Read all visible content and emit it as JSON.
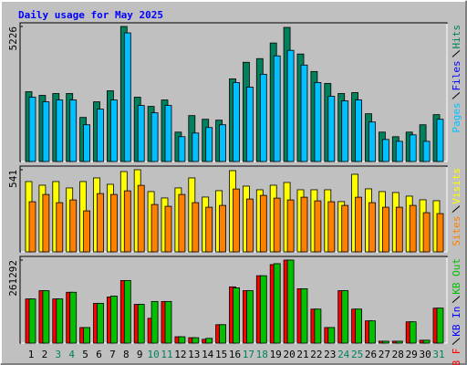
{
  "title": "Daily usage for May 2025",
  "chart_data": [
    {
      "type": "bar",
      "ylim": [
        0,
        5226
      ],
      "yticks": [
        5226
      ],
      "series": [
        {
          "name": "Hits",
          "color": "#00805c",
          "values": [
            2702,
            2560,
            2631,
            2631,
            1706,
            2311,
            2737,
            5226,
            2489,
            2133,
            2382,
            1138,
            1777,
            1635,
            1600,
            3200,
            3840,
            3982,
            4586,
            5190,
            4160,
            3484,
            3022,
            2631,
            2666,
            1849,
            1138,
            960,
            1138,
            1422,
            1813
          ]
        },
        {
          "name": "Files",
          "color": "#0000ff",
          "values": [
            null,
            null,
            null,
            null,
            null,
            null,
            null,
            null,
            null,
            null,
            null,
            null,
            null,
            null,
            null,
            null,
            null,
            null,
            null,
            null,
            null,
            null,
            null,
            null,
            null,
            null,
            null,
            null,
            null,
            null,
            null
          ]
        },
        {
          "name": "Pages",
          "color": "#00c0ff",
          "values": [
            2489,
            2311,
            2382,
            2382,
            1422,
            2027,
            2382,
            4977,
            2169,
            1884,
            2169,
            960,
            1102,
            1315,
            1422,
            3057,
            2880,
            3377,
            4088,
            4302,
            3733,
            3057,
            2524,
            2346,
            2382,
            1529,
            853,
            782,
            1031,
            782,
            1635
          ]
        }
      ]
    },
    {
      "type": "bar",
      "ylim": [
        0,
        541
      ],
      "yticks": [
        541
      ],
      "series": [
        {
          "name": "Visits",
          "color": "#ffff00",
          "values": [
            463,
            439,
            463,
            421,
            463,
            487,
            445,
            529,
            541,
            397,
            355,
            421,
            487,
            361,
            403,
            535,
            433,
            409,
            439,
            457,
            409,
            409,
            409,
            331,
            511,
            415,
            397,
            391,
            367,
            343,
            337
          ]
        },
        {
          "name": "Sites",
          "color": "#ff8000",
          "values": [
            330,
            378,
            324,
            342,
            270,
            384,
            378,
            402,
            438,
            312,
            300,
            378,
            324,
            294,
            306,
            414,
            348,
            372,
            354,
            342,
            360,
            336,
            330,
            306,
            360,
            324,
            294,
            294,
            306,
            258,
            252
          ]
        }
      ]
    },
    {
      "type": "bar",
      "ylim": [
        0,
        261292
      ],
      "yticks": [
        261292
      ],
      "legend_order": "reverse",
      "categories": [
        "1",
        "2",
        "3",
        "4",
        "5",
        "6",
        "7",
        "8",
        "9",
        "10",
        "11",
        "12",
        "13",
        "14",
        "15",
        "16",
        "17",
        "18",
        "19",
        "20",
        "21",
        "22",
        "23",
        "24",
        "25",
        "26",
        "27",
        "28",
        "29",
        "30",
        "31"
      ],
      "category_colors": [
        "#000000",
        "#000000",
        "#00805c",
        "#00805c",
        "#000000",
        "#000000",
        "#000000",
        "#000000",
        "#000000",
        "#00805c",
        "#00805c",
        "#000000",
        "#000000",
        "#000000",
        "#000000",
        "#000000",
        "#00805c",
        "#00805c",
        "#000000",
        "#000000",
        "#000000",
        "#000000",
        "#000000",
        "#00805c",
        "#00805c",
        "#000000",
        "#000000",
        "#000000",
        "#000000",
        "#000000",
        "#00805c"
      ],
      "series": [
        {
          "name": "KB F",
          "color": "#ff0000",
          "values": [
            139000,
            165000,
            139000,
            160000,
            49000,
            125000,
            145000,
            197000,
            122000,
            78000,
            131000,
            20000,
            17000,
            12000,
            58000,
            177000,
            165000,
            212000,
            247000,
            261292,
            171000,
            107000,
            49000,
            165000,
            107000,
            70000,
            6000,
            6000,
            67000,
            9000,
            110000
          ]
        },
        {
          "name": "KB In",
          "color": "#0000ff",
          "values": [
            null,
            null,
            null,
            null,
            null,
            null,
            null,
            null,
            null,
            null,
            null,
            null,
            null,
            null,
            null,
            null,
            null,
            null,
            null,
            null,
            null,
            null,
            null,
            null,
            null,
            null,
            null,
            null,
            null,
            null,
            null
          ]
        },
        {
          "name": "KB Out",
          "color": "#00c000",
          "values": [
            139000,
            165000,
            139000,
            160000,
            49000,
            125000,
            148000,
            197000,
            122000,
            131000,
            131000,
            20000,
            17000,
            15000,
            58000,
            174000,
            165000,
            212000,
            250000,
            261292,
            171000,
            107000,
            49000,
            165000,
            107000,
            70000,
            6000,
            6000,
            67000,
            9000,
            110000
          ]
        }
      ]
    }
  ]
}
